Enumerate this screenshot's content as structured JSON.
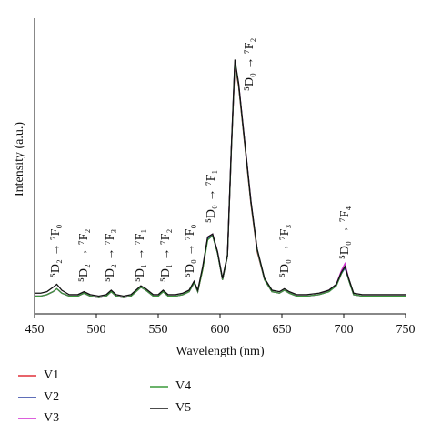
{
  "chart_data": {
    "type": "line",
    "xlabel": "Wavelength (nm)",
    "ylabel": "Intensity (a.u.)",
    "xlim": [
      450,
      750
    ],
    "xticks": [
      450,
      500,
      550,
      600,
      650,
      700,
      750
    ],
    "ylim": [
      0,
      100
    ],
    "annotations": [
      "⁵D₂ → ⁷F₀",
      "⁵D₂ → ⁷F₂",
      "⁵D₂ → ⁷F₃",
      "⁵D₁ → ⁷F₁",
      "⁵D₁ → ⁷F₂",
      "⁵D₀ → ⁷F₀",
      "⁵D₀ → ⁷F₁",
      "⁵D₀ → ⁷F₂",
      "⁵D₀ → ⁷F₃",
      "⁵D₀ → ⁷F₄"
    ],
    "x": [
      450,
      455,
      460,
      465,
      468,
      472,
      478,
      485,
      490,
      495,
      502,
      508,
      512,
      516,
      522,
      528,
      532,
      536,
      540,
      546,
      550,
      554,
      558,
      564,
      570,
      575,
      579,
      582,
      586,
      590,
      594,
      598,
      602,
      606,
      609,
      612,
      615,
      620,
      625,
      630,
      636,
      642,
      648,
      652,
      656,
      662,
      670,
      680,
      688,
      694,
      698,
      701,
      704,
      708,
      715,
      725,
      735,
      750
    ],
    "series": [
      {
        "name": "V1",
        "color": "#e0303a",
        "values": [
          6,
          6,
          6.5,
          7.5,
          8.5,
          7,
          6,
          6,
          7,
          6,
          5.5,
          6,
          7.5,
          6,
          5.5,
          6,
          7.5,
          9,
          8,
          6,
          6,
          7.5,
          6,
          6,
          6.5,
          7.5,
          10.5,
          7.5,
          15,
          25.5,
          26.5,
          20.5,
          11.5,
          19.5,
          54,
          84,
          77,
          57,
          37,
          21,
          11.5,
          7.5,
          7,
          8,
          7,
          6,
          6,
          6.5,
          7.5,
          9.5,
          13.5,
          16,
          11.5,
          6.5,
          6,
          6,
          6,
          6
        ]
      },
      {
        "name": "V2",
        "color": "#2a3fa0",
        "values": [
          6,
          6,
          6.5,
          7.5,
          8.5,
          7,
          6,
          6,
          7,
          6,
          5.5,
          6,
          7.5,
          6,
          5.5,
          6,
          7.5,
          9,
          8,
          6,
          6,
          7.5,
          6,
          6,
          6.5,
          7.5,
          10.5,
          7.5,
          15.5,
          25.5,
          26.5,
          20.5,
          11.5,
          19.5,
          54.5,
          85,
          77.5,
          57.5,
          37.5,
          21.5,
          11.5,
          7.5,
          7,
          8,
          7,
          6,
          6,
          6.5,
          7.5,
          9.5,
          13.5,
          15.5,
          11.5,
          6.5,
          6,
          6,
          6,
          6
        ]
      },
      {
        "name": "V3",
        "color": "#d02ad0",
        "values": [
          6,
          6,
          6.5,
          7.5,
          8.5,
          7,
          6,
          6,
          7,
          6,
          5.5,
          6,
          7.5,
          6,
          5.5,
          6,
          7.5,
          9,
          8,
          6,
          6,
          7.5,
          6,
          6,
          6.5,
          7.5,
          10.5,
          7.5,
          15.5,
          26,
          27,
          21,
          11.5,
          19.5,
          54.5,
          85,
          78,
          58,
          38,
          21.5,
          11.5,
          7.5,
          7,
          8,
          7,
          6,
          6,
          6.5,
          8,
          10,
          14.5,
          17,
          12,
          6.5,
          6,
          6,
          6,
          6
        ]
      },
      {
        "name": "V4",
        "color": "#3a9a3a",
        "values": [
          6,
          6,
          6.5,
          7.5,
          8.5,
          7,
          6,
          6,
          7,
          6,
          5.5,
          6,
          7.5,
          6,
          5.5,
          6,
          7.5,
          9,
          8,
          6,
          6,
          7.5,
          6,
          6,
          6.5,
          7.5,
          10.5,
          7.5,
          15,
          25,
          26.5,
          20.5,
          11.5,
          19.5,
          54,
          85,
          77.5,
          57.5,
          37.5,
          21.5,
          11.5,
          7.5,
          7,
          8,
          7,
          6,
          6,
          6.5,
          7.5,
          9.5,
          13.5,
          16,
          11.5,
          6.5,
          6,
          6,
          6,
          6
        ]
      },
      {
        "name": "V5",
        "color": "#111111",
        "values": [
          7,
          7,
          7.5,
          9,
          10,
          8,
          6.5,
          6.5,
          7.5,
          6.5,
          6,
          6.5,
          8,
          6.5,
          6,
          6.5,
          8,
          9.5,
          8.5,
          6.5,
          6.5,
          8,
          6.5,
          6.5,
          7,
          8,
          11,
          8,
          16,
          26,
          27,
          21,
          12,
          20,
          55,
          86,
          78,
          58,
          38,
          22,
          12,
          8,
          7.5,
          8.5,
          7.5,
          6.5,
          6.5,
          7,
          8,
          10,
          14,
          16,
          12,
          7,
          6.5,
          6.5,
          6.5,
          6.5
        ]
      }
    ]
  }
}
